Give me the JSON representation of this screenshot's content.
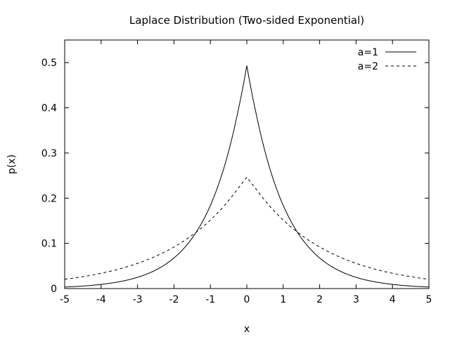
{
  "chart_data": {
    "type": "line",
    "title": "Laplace Distribution (Two-sided Exponential)",
    "xlabel": "x",
    "ylabel": "p(x)",
    "xlim": [
      -5,
      5
    ],
    "ylim": [
      0,
      0.55
    ],
    "x_ticks": [
      -5,
      -4,
      -3,
      -2,
      -1,
      0,
      1,
      2,
      3,
      4,
      5
    ],
    "x_tick_labels": [
      "-5",
      "-4",
      "-3",
      "-2",
      "-1",
      "0",
      "1",
      "2",
      "3",
      "4",
      "5"
    ],
    "y_ticks": [
      0,
      0.1,
      0.2,
      0.3,
      0.4,
      0.5
    ],
    "y_tick_labels": [
      "0",
      "0.1",
      "0.2",
      "0.3",
      "0.4",
      "0.5"
    ],
    "grid": false,
    "legend_position": "top-right",
    "x": [
      -5,
      -4.5,
      -4,
      -3.5,
      -3,
      -2.5,
      -2,
      -1.5,
      -1,
      -0.75,
      -0.5,
      -0.25,
      0,
      0.25,
      0.5,
      0.75,
      1,
      1.5,
      2,
      2.5,
      3,
      3.5,
      4,
      4.5,
      5
    ],
    "series": [
      {
        "name": "a=1",
        "style": "solid",
        "color": "#000000",
        "values": [
          0.0034,
          0.0056,
          0.0092,
          0.0151,
          0.0249,
          0.041,
          0.0677,
          0.1116,
          0.1839,
          0.2362,
          0.3033,
          0.3894,
          0.4933,
          0.3894,
          0.3033,
          0.2362,
          0.1839,
          0.1116,
          0.0677,
          0.041,
          0.0249,
          0.0151,
          0.0092,
          0.0056,
          0.0034
        ]
      },
      {
        "name": "a=2",
        "style": "dashed",
        "color": "#000000",
        "values": [
          0.0205,
          0.0263,
          0.0338,
          0.0434,
          0.0558,
          0.0716,
          0.092,
          0.1181,
          0.1516,
          0.1718,
          0.1947,
          0.2206,
          0.2467,
          0.2206,
          0.1947,
          0.1718,
          0.1516,
          0.1181,
          0.092,
          0.0716,
          0.0558,
          0.0434,
          0.0338,
          0.0263,
          0.0205
        ]
      }
    ]
  }
}
